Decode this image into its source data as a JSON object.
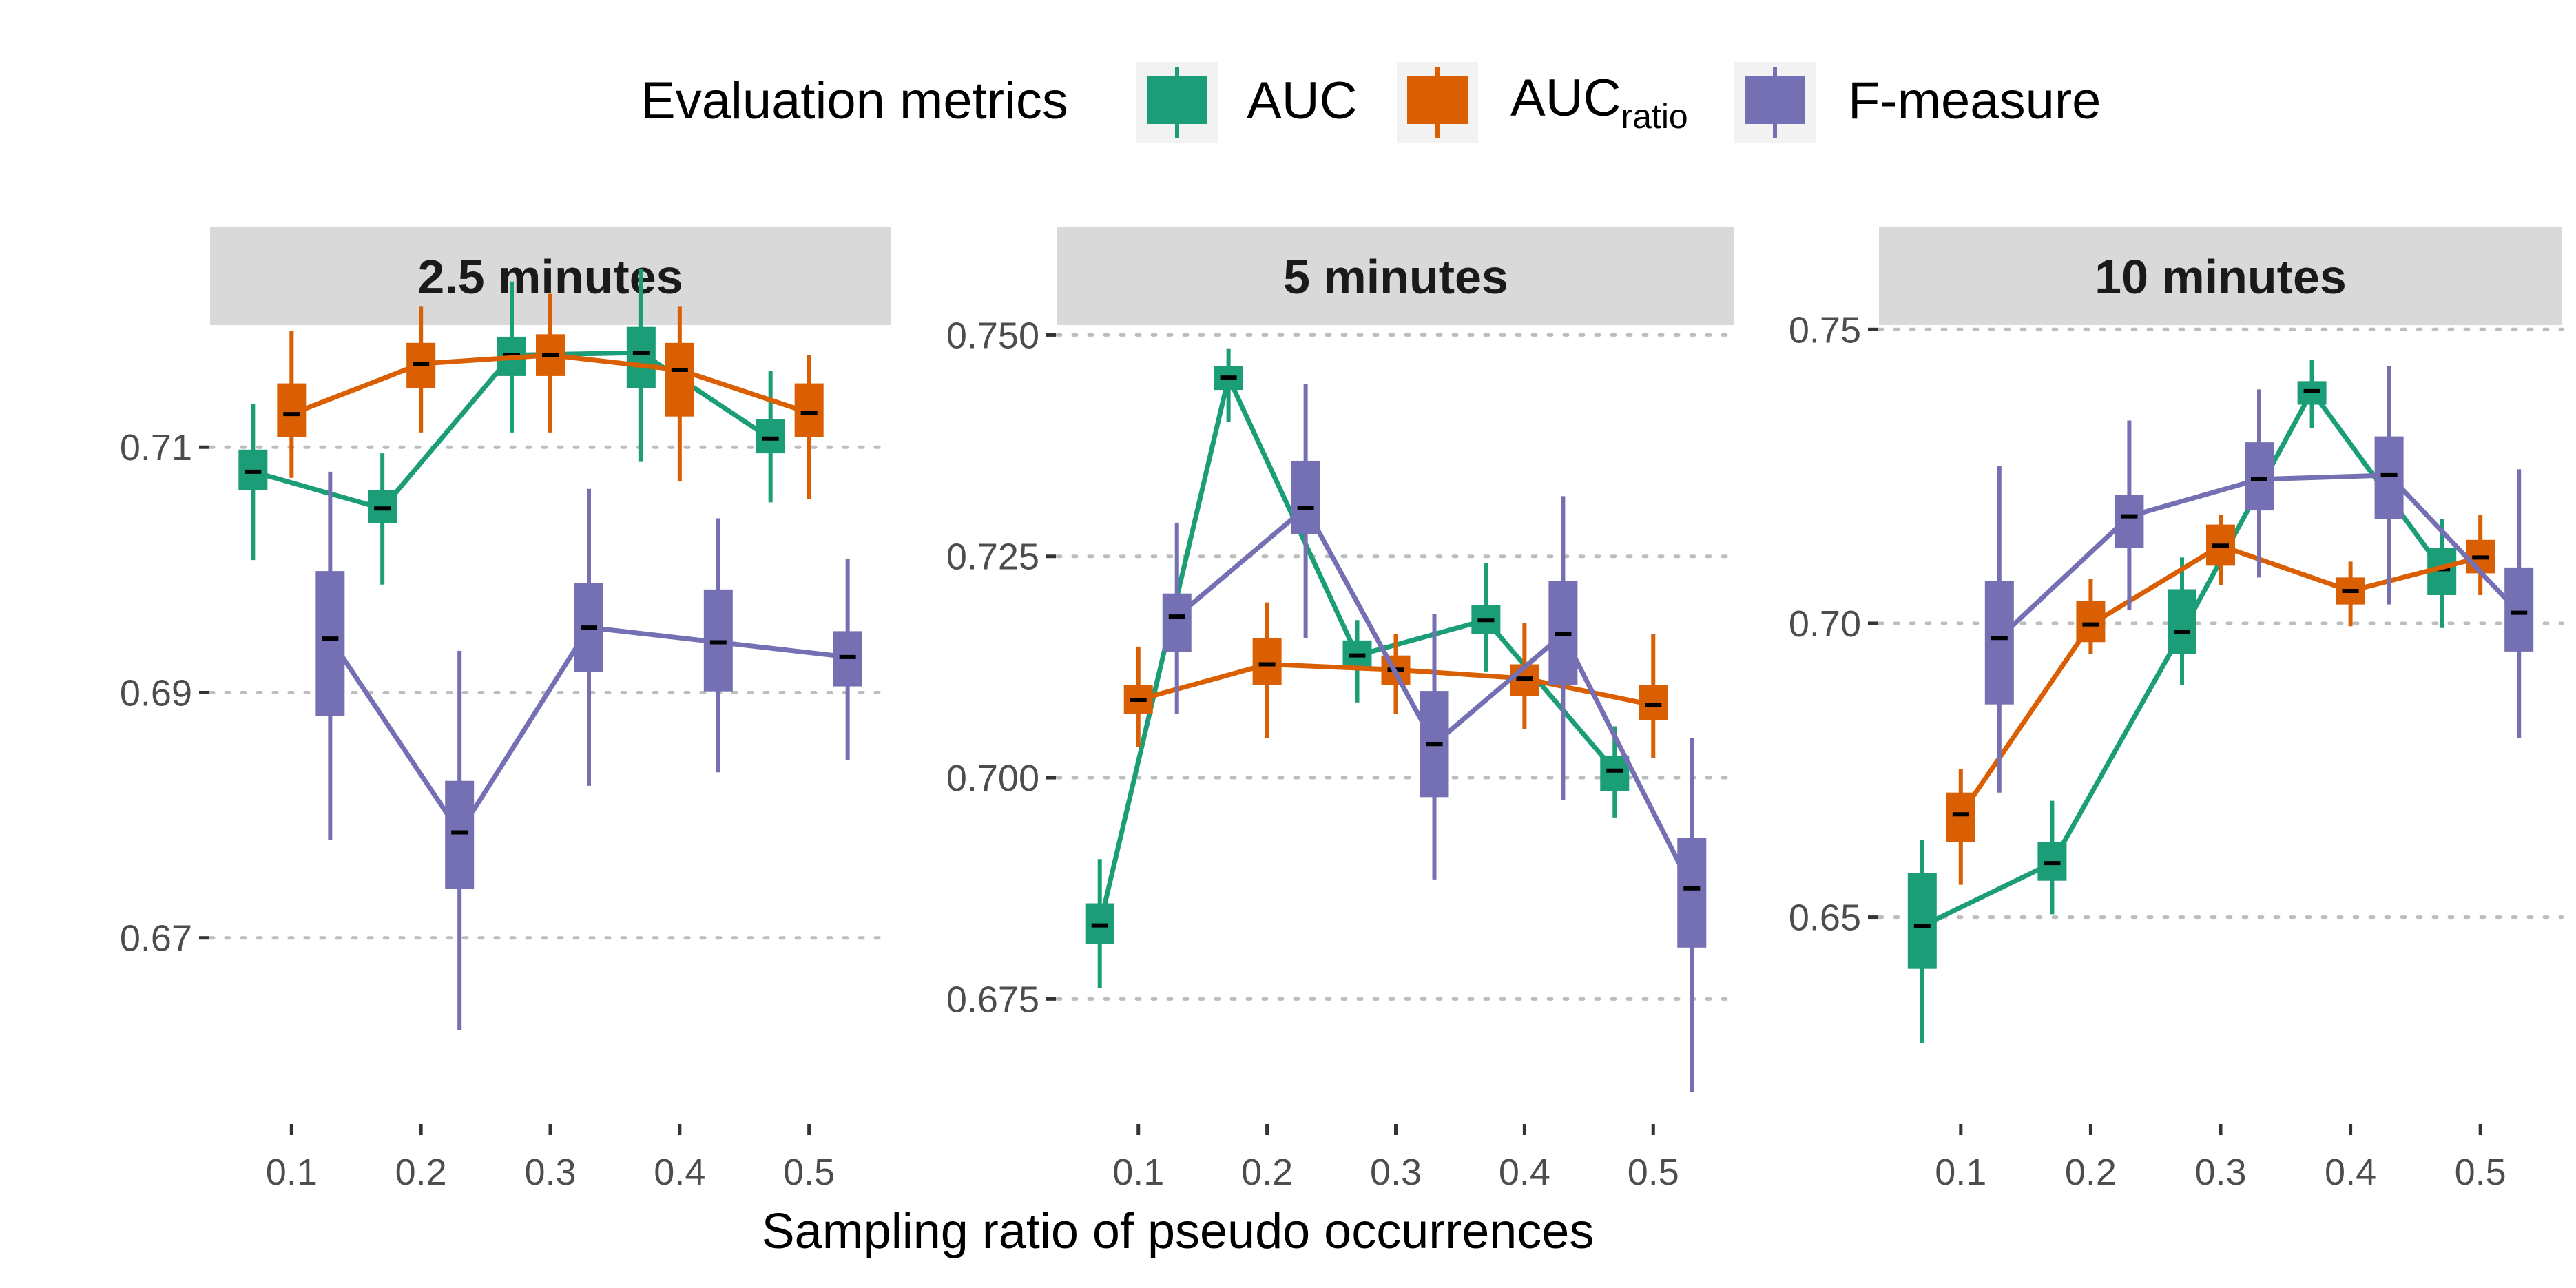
{
  "legend": {
    "title": "Evaluation metrics",
    "items": [
      {
        "key": "AUC",
        "label": "AUC",
        "sub": "",
        "color": "#1b9e77"
      },
      {
        "key": "AUCratio",
        "label": "AUC",
        "sub": "ratio",
        "color": "#d95f02"
      },
      {
        "key": "F",
        "label": "F-measure",
        "sub": "",
        "color": "#7570b3"
      }
    ]
  },
  "chart_data": {
    "type": "line",
    "x_title": "Sampling ratio of pseudo occurrences",
    "x_categories": [
      0.1,
      0.2,
      0.3,
      0.4,
      0.5
    ],
    "x_tick_labels": [
      "0.1",
      "0.2",
      "0.3",
      "0.4",
      "0.5"
    ],
    "series_order": [
      "AUC",
      "AUCratio",
      "F"
    ],
    "grid": "horizontal dotted at y ticks",
    "legend_position": "top",
    "panels": [
      {
        "title": "2.5 minutes",
        "ylim": [
          0.6555,
          0.7195
        ],
        "y_ticks": [
          0.67,
          0.69,
          0.71
        ],
        "y_tick_labels": [
          "0.67",
          "0.69",
          "0.71"
        ],
        "series": {
          "AUC": {
            "median": [
              0.708,
              0.705,
              0.7175,
              0.7177,
              0.7107
            ],
            "q1": [
              0.7065,
              0.7038,
              0.7158,
              0.7148,
              0.7095
            ],
            "q3": [
              0.7098,
              0.7065,
              0.719,
              0.7198,
              0.7123
            ],
            "min": [
              0.7008,
              0.6988,
              0.7112,
              0.7088,
              0.7055
            ],
            "max": [
              0.7135,
              0.7095,
              0.7235,
              0.7245,
              0.7162
            ]
          },
          "AUCratio": {
            "median": [
              0.7127,
              0.7168,
              0.7175,
              0.7163,
              0.7128
            ],
            "q1": [
              0.7108,
              0.7148,
              0.7158,
              0.7125,
              0.7108
            ],
            "q3": [
              0.7152,
              0.7185,
              0.7192,
              0.7185,
              0.7152
            ],
            "min": [
              0.7075,
              0.7112,
              0.7112,
              0.7072,
              0.7058
            ],
            "max": [
              0.7195,
              0.7215,
              0.7225,
              0.7215,
              0.7175
            ]
          },
          "F": {
            "median": [
              0.6944,
              0.6786,
              0.6953,
              0.6941,
              0.6929
            ],
            "q1": [
              0.6881,
              0.674,
              0.6917,
              0.6901,
              0.6905
            ],
            "q3": [
              0.6999,
              0.6828,
              0.6989,
              0.6984,
              0.695
            ],
            "min": [
              0.678,
              0.6625,
              0.6824,
              0.6835,
              0.6845
            ],
            "max": [
              0.708,
              0.6934,
              0.7066,
              0.7042,
              0.7009
            ]
          }
        }
      },
      {
        "title": "5 minutes",
        "ylim": [
          0.6618,
          0.7505
        ],
        "y_ticks": [
          0.675,
          0.7,
          0.725,
          0.75
        ],
        "y_tick_labels": [
          "0.675",
          "0.700",
          "0.725",
          "0.750"
        ],
        "series": {
          "AUC": {
            "median": [
              0.6833,
              0.7452,
              0.7138,
              0.7178,
              0.7008
            ],
            "q1": [
              0.6812,
              0.7438,
              0.7125,
              0.7162,
              0.6985
            ],
            "q3": [
              0.6858,
              0.7465,
              0.7155,
              0.7195,
              0.7025
            ],
            "min": [
              0.6762,
              0.7402,
              0.7085,
              0.712,
              0.6955
            ],
            "max": [
              0.6908,
              0.7485,
              0.7178,
              0.7242,
              0.7058
            ]
          },
          "AUCratio": {
            "median": [
              0.7088,
              0.7128,
              0.7122,
              0.7112,
              0.7082
            ],
            "q1": [
              0.7072,
              0.7105,
              0.7105,
              0.7092,
              0.7065
            ],
            "q3": [
              0.7105,
              0.7158,
              0.7138,
              0.7128,
              0.7105
            ],
            "min": [
              0.7035,
              0.7045,
              0.7072,
              0.7055,
              0.7022
            ],
            "max": [
              0.7148,
              0.7198,
              0.7162,
              0.7175,
              0.7162
            ]
          },
          "F": {
            "median": [
              0.7182,
              0.7305,
              0.7038,
              0.7162,
              0.6875
            ],
            "q1": [
              0.7142,
              0.7275,
              0.6978,
              0.7105,
              0.6808
            ],
            "q3": [
              0.7208,
              0.7358,
              0.7098,
              0.7222,
              0.6932
            ],
            "min": [
              0.7072,
              0.7158,
              0.6885,
              0.6975,
              0.6645
            ],
            "max": [
              0.7288,
              0.7445,
              0.7185,
              0.7318,
              0.7045
            ]
          }
        }
      },
      {
        "title": "10 minutes",
        "ylim": [
          0.6162,
          0.7498
        ],
        "y_ticks": [
          0.65,
          0.7,
          0.75
        ],
        "y_tick_labels": [
          "0.65",
          "0.70",
          "0.75"
        ],
        "series": {
          "AUC": {
            "median": [
              0.6485,
              0.6592,
              0.6985,
              0.7395,
              0.7092
            ],
            "q1": [
              0.6412,
              0.6562,
              0.6948,
              0.7372,
              0.7048
            ],
            "q3": [
              0.6575,
              0.6628,
              0.7058,
              0.7412,
              0.7128
            ],
            "min": [
              0.6285,
              0.6505,
              0.6895,
              0.7332,
              0.6992
            ],
            "max": [
              0.6632,
              0.6698,
              0.7112,
              0.7448,
              0.7178
            ]
          },
          "AUCratio": {
            "median": [
              0.6675,
              0.6998,
              0.7132,
              0.7055,
              0.7112
            ],
            "q1": [
              0.6628,
              0.6968,
              0.7098,
              0.7032,
              0.7085
            ],
            "q3": [
              0.6712,
              0.7038,
              0.7168,
              0.7078,
              0.7142
            ],
            "min": [
              0.6555,
              0.6948,
              0.7065,
              0.6995,
              0.7048
            ],
            "max": [
              0.6752,
              0.7075,
              0.7185,
              0.7105,
              0.7185
            ]
          },
          "F": {
            "median": [
              0.6975,
              0.7182,
              0.7245,
              0.7252,
              0.7018
            ],
            "q1": [
              0.6862,
              0.7128,
              0.7192,
              0.7178,
              0.6952
            ],
            "q3": [
              0.7072,
              0.7218,
              0.7308,
              0.7318,
              0.7095
            ],
            "min": [
              0.6712,
              0.7022,
              0.7078,
              0.7032,
              0.6805
            ],
            "max": [
              0.7268,
              0.7345,
              0.7398,
              0.7438,
              0.7262
            ]
          }
        }
      }
    ]
  }
}
